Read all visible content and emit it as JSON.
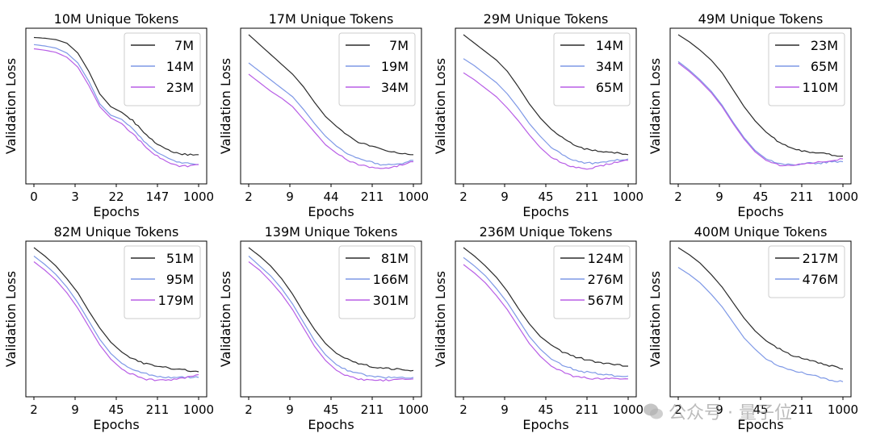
{
  "colors": {
    "s0": "#2b2b2b",
    "s1": "#7e98e6",
    "s2": "#b85ee6"
  },
  "watermark": {
    "text": "公众号 · 量子位"
  },
  "chart_data": [
    {
      "type": "line",
      "title": "10M Unique Tokens",
      "xlabel": "Epochs",
      "ylabel": "Validation Loss",
      "xticks": [
        "0",
        "3",
        "22",
        "147",
        "1000"
      ],
      "legend": "top-right",
      "series": [
        {
          "name": "7M",
          "y": [
            0.98,
            0.975,
            0.965,
            0.94,
            0.87,
            0.74,
            0.58,
            0.49,
            0.45,
            0.39,
            0.31,
            0.24,
            0.19,
            0.16,
            0.15,
            0.15
          ]
        },
        {
          "name": "14M",
          "y": [
            0.93,
            0.92,
            0.905,
            0.87,
            0.8,
            0.67,
            0.51,
            0.43,
            0.4,
            0.33,
            0.25,
            0.18,
            0.13,
            0.1,
            0.09,
            0.08
          ]
        },
        {
          "name": "23M",
          "y": [
            0.9,
            0.89,
            0.875,
            0.84,
            0.77,
            0.64,
            0.49,
            0.41,
            0.37,
            0.3,
            0.22,
            0.15,
            0.1,
            0.07,
            0.07,
            0.08
          ]
        }
      ]
    },
    {
      "type": "line",
      "title": "17M Unique Tokens",
      "xlabel": "Epochs",
      "ylabel": "Validation Loss",
      "xticks": [
        "2",
        "9",
        "44",
        "211",
        "1000"
      ],
      "legend": "top-right",
      "series": [
        {
          "name": "7M",
          "y": [
            1.0,
            0.93,
            0.86,
            0.79,
            0.72,
            0.63,
            0.52,
            0.42,
            0.35,
            0.29,
            0.24,
            0.21,
            0.19,
            0.17,
            0.16,
            0.15
          ]
        },
        {
          "name": "19M",
          "y": [
            0.8,
            0.74,
            0.68,
            0.62,
            0.56,
            0.47,
            0.37,
            0.28,
            0.21,
            0.16,
            0.12,
            0.1,
            0.08,
            0.08,
            0.09,
            0.11
          ]
        },
        {
          "name": "34M",
          "y": [
            0.72,
            0.66,
            0.6,
            0.55,
            0.49,
            0.4,
            0.31,
            0.22,
            0.16,
            0.11,
            0.08,
            0.06,
            0.05,
            0.06,
            0.08,
            0.1
          ]
        }
      ]
    },
    {
      "type": "line",
      "title": "29M Unique Tokens",
      "xlabel": "Epochs",
      "ylabel": "Validation Loss",
      "xticks": [
        "2",
        "9",
        "45",
        "211",
        "1000"
      ],
      "legend": "top-right",
      "series": [
        {
          "name": "14M",
          "y": [
            1.0,
            0.94,
            0.88,
            0.82,
            0.74,
            0.63,
            0.51,
            0.41,
            0.33,
            0.27,
            0.22,
            0.19,
            0.18,
            0.17,
            0.16,
            0.15
          ]
        },
        {
          "name": "34M",
          "y": [
            0.83,
            0.78,
            0.72,
            0.66,
            0.58,
            0.48,
            0.37,
            0.28,
            0.2,
            0.15,
            0.11,
            0.09,
            0.09,
            0.1,
            0.11,
            0.12
          ]
        },
        {
          "name": "65M",
          "y": [
            0.73,
            0.68,
            0.62,
            0.56,
            0.48,
            0.39,
            0.29,
            0.2,
            0.13,
            0.09,
            0.06,
            0.05,
            0.06,
            0.08,
            0.1,
            0.11
          ]
        }
      ]
    },
    {
      "type": "line",
      "title": "49M Unique Tokens",
      "xlabel": "Epochs",
      "ylabel": "Validation Loss",
      "xticks": [
        "2",
        "9",
        "45",
        "211",
        "1000"
      ],
      "legend": "top-right",
      "series": [
        {
          "name": "23M",
          "y": [
            1.0,
            0.95,
            0.89,
            0.82,
            0.73,
            0.61,
            0.49,
            0.39,
            0.31,
            0.25,
            0.21,
            0.18,
            0.17,
            0.16,
            0.15,
            0.14
          ]
        },
        {
          "name": "65M",
          "y": [
            0.81,
            0.75,
            0.68,
            0.6,
            0.5,
            0.38,
            0.27,
            0.18,
            0.12,
            0.09,
            0.08,
            0.08,
            0.09,
            0.09,
            0.1,
            0.1
          ]
        },
        {
          "name": "110M",
          "y": [
            0.8,
            0.74,
            0.67,
            0.59,
            0.49,
            0.37,
            0.26,
            0.17,
            0.11,
            0.08,
            0.07,
            0.08,
            0.09,
            0.1,
            0.11,
            0.12
          ]
        }
      ]
    },
    {
      "type": "line",
      "title": "82M Unique Tokens",
      "xlabel": "Epochs",
      "ylabel": "Validation Loss",
      "xticks": [
        "2",
        "9",
        "45",
        "211",
        "1000"
      ],
      "legend": "top-right",
      "series": [
        {
          "name": "51M",
          "y": [
            1.0,
            0.94,
            0.87,
            0.78,
            0.68,
            0.55,
            0.43,
            0.33,
            0.26,
            0.21,
            0.18,
            0.16,
            0.15,
            0.14,
            0.13,
            0.12
          ]
        },
        {
          "name": "95M",
          "y": [
            0.94,
            0.88,
            0.81,
            0.72,
            0.61,
            0.48,
            0.35,
            0.25,
            0.18,
            0.14,
            0.11,
            0.09,
            0.08,
            0.08,
            0.08,
            0.08
          ]
        },
        {
          "name": "179M",
          "y": [
            0.9,
            0.84,
            0.77,
            0.68,
            0.57,
            0.44,
            0.31,
            0.21,
            0.14,
            0.1,
            0.07,
            0.06,
            0.06,
            0.07,
            0.08,
            0.1
          ]
        }
      ]
    },
    {
      "type": "line",
      "title": "139M Unique Tokens",
      "xlabel": "Epochs",
      "ylabel": "Validation Loss",
      "xticks": [
        "2",
        "9",
        "45",
        "211",
        "1000"
      ],
      "legend": "top-right",
      "series": [
        {
          "name": "81M",
          "y": [
            1.0,
            0.94,
            0.87,
            0.78,
            0.67,
            0.54,
            0.42,
            0.32,
            0.25,
            0.21,
            0.18,
            0.16,
            0.15,
            0.14,
            0.14,
            0.13
          ]
        },
        {
          "name": "166M",
          "y": [
            0.94,
            0.87,
            0.8,
            0.71,
            0.6,
            0.47,
            0.34,
            0.24,
            0.17,
            0.13,
            0.11,
            0.09,
            0.08,
            0.08,
            0.08,
            0.08
          ]
        },
        {
          "name": "301M",
          "y": [
            0.9,
            0.84,
            0.76,
            0.67,
            0.56,
            0.43,
            0.3,
            0.2,
            0.13,
            0.09,
            0.07,
            0.06,
            0.06,
            0.06,
            0.07,
            0.07
          ]
        }
      ]
    },
    {
      "type": "line",
      "title": "236M Unique Tokens",
      "xlabel": "Epochs",
      "ylabel": "Validation Loss",
      "xticks": [
        "2",
        "9",
        "45",
        "211",
        "1000"
      ],
      "legend": "top-right",
      "series": [
        {
          "name": "124M",
          "y": [
            1.0,
            0.94,
            0.87,
            0.79,
            0.69,
            0.57,
            0.46,
            0.37,
            0.31,
            0.26,
            0.23,
            0.21,
            0.19,
            0.18,
            0.17,
            0.16
          ]
        },
        {
          "name": "276M",
          "y": [
            0.93,
            0.87,
            0.8,
            0.71,
            0.61,
            0.49,
            0.37,
            0.28,
            0.21,
            0.17,
            0.14,
            0.12,
            0.11,
            0.1,
            0.09,
            0.09
          ]
        },
        {
          "name": "567M",
          "y": [
            0.88,
            0.82,
            0.75,
            0.66,
            0.56,
            0.44,
            0.32,
            0.23,
            0.16,
            0.12,
            0.09,
            0.08,
            0.07,
            0.07,
            0.07,
            0.07
          ]
        }
      ]
    },
    {
      "type": "line",
      "title": "400M Unique Tokens",
      "xlabel": "Epochs",
      "ylabel": "Validation Loss",
      "xticks": [
        "2",
        "9",
        "45",
        "211",
        "1000"
      ],
      "legend": "top-right",
      "series": [
        {
          "name": "217M",
          "y": [
            1.0,
            0.95,
            0.89,
            0.81,
            0.72,
            0.61,
            0.5,
            0.41,
            0.34,
            0.29,
            0.25,
            0.22,
            0.2,
            0.18,
            0.16,
            0.14
          ]
        },
        {
          "name": "476M",
          "y": [
            0.86,
            0.81,
            0.75,
            0.67,
            0.58,
            0.47,
            0.36,
            0.28,
            0.21,
            0.17,
            0.14,
            0.12,
            0.1,
            0.08,
            0.06,
            0.05
          ]
        }
      ]
    }
  ]
}
